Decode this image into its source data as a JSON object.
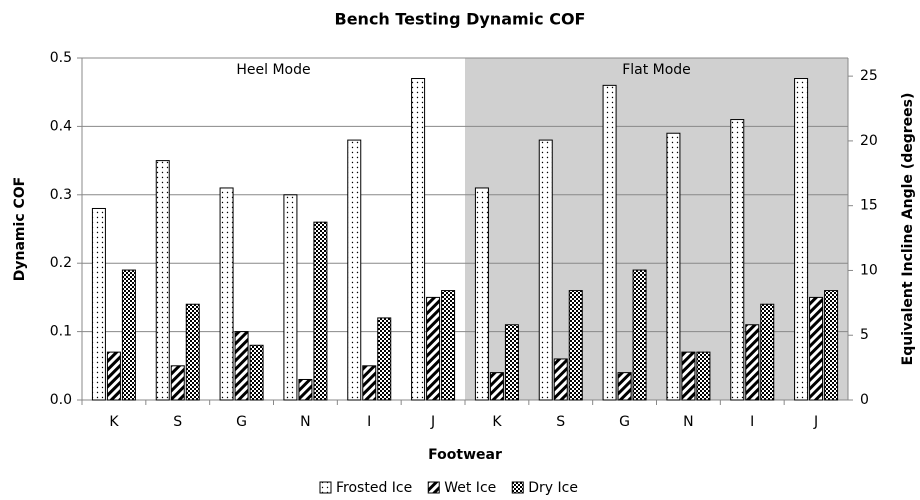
{
  "chart_data": {
    "type": "bar",
    "title": "Bench Testing Dynamic COF",
    "x_label": "Footwear",
    "y_label": "Dynamic COF",
    "y2_label": "Equivalent Incline Angle (degrees)",
    "annotations": [
      "Heel Mode",
      "Flat Mode"
    ],
    "categories": [
      "K",
      "S",
      "G",
      "N",
      "I",
      "J",
      "K",
      "S",
      "G",
      "N",
      "I",
      "J"
    ],
    "series": [
      {
        "name": "Frosted Ice",
        "pattern": "dots",
        "values": [
          0.28,
          0.35,
          0.31,
          0.3,
          0.38,
          0.47,
          0.31,
          0.38,
          0.46,
          0.39,
          0.41,
          0.47
        ]
      },
      {
        "name": "Wet Ice",
        "pattern": "hatch",
        "values": [
          0.07,
          0.05,
          0.1,
          0.03,
          0.05,
          0.15,
          0.04,
          0.06,
          0.04,
          0.07,
          0.11,
          0.15
        ]
      },
      {
        "name": "Dry Ice",
        "pattern": "checker",
        "values": [
          0.19,
          0.14,
          0.08,
          0.26,
          0.12,
          0.16,
          0.11,
          0.16,
          0.19,
          0.07,
          0.14,
          0.16
        ]
      }
    ],
    "ylim": [
      0,
      0.5
    ],
    "yticks": [
      {
        "value": 0,
        "label": "0.0"
      },
      0.1,
      0.2,
      0.3,
      0.4,
      0.5
    ],
    "y2lim": [
      0,
      26.4
    ],
    "y2ticks": [
      0,
      5,
      10,
      15,
      20,
      25
    ],
    "grid": true,
    "legend": "bottom"
  }
}
